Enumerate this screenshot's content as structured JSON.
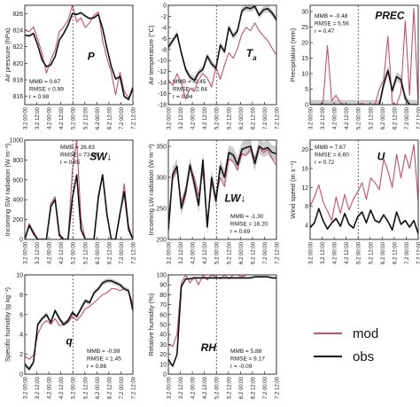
{
  "legend": {
    "mod_label": "mod",
    "obs_label": "obs",
    "mod_color": "#c0506e",
    "obs_color": "#111111"
  },
  "colors": {
    "mod": "#c0506e",
    "obs": "#111111",
    "band": "#aaaaaa",
    "axis": "#222222"
  },
  "x_tick_labels": [
    "3.2 00:00",
    "3.2 12:00",
    "4.2 00:00",
    "4.2 12:00",
    "5.2 00:00",
    "5.2 12:00",
    "6.2 00:00",
    "6.2 12:00",
    "7.2 00:00",
    "7.2 12:00"
  ],
  "chart_data": [
    {
      "type": "line",
      "id": "P",
      "title_main": "P",
      "title_sub": "",
      "ylabel": "Air pressure (hPa)",
      "ylim": [
        815,
        827
      ],
      "yticks": [
        816,
        818,
        820,
        822,
        824,
        826
      ],
      "stats": [
        "MMB = 0.67",
        "RMSE = 0.99",
        "r = 0.98"
      ],
      "series": [
        {
          "name": "obs",
          "values": [
            823.4,
            823.3,
            823.6,
            822.2,
            820.4,
            819.6,
            819.8,
            820.8,
            822.8,
            823.6,
            824.6,
            826.0,
            825.9,
            826.1,
            825.7,
            825.4,
            825.5,
            825.9,
            824.2,
            821.8,
            819.6,
            818.1,
            818.4,
            816.0,
            815.6,
            817.0
          ]
        },
        {
          "name": "mod",
          "values": [
            824.0,
            823.8,
            824.4,
            822.9,
            821.2,
            818.8,
            820.4,
            821.6,
            823.8,
            824.4,
            825.2,
            827.0,
            825.0,
            825.5,
            824.3,
            824.9,
            825.8,
            826.2,
            822.8,
            820.6,
            818.9,
            816.2,
            818.9,
            816.6,
            815.8,
            817.2
          ]
        }
      ],
      "band": {
        "series": "obs",
        "half_width": 0.12
      }
    },
    {
      "type": "line",
      "id": "Ta",
      "title_main": "T",
      "title_sub": "a",
      "ylabel": "Air temperature (°C)",
      "ylim": [
        -18,
        0
      ],
      "yticks": [
        -18,
        -16,
        -14,
        -12,
        -10,
        -8,
        -6,
        -4,
        -2,
        0
      ],
      "stats": [
        "MMB = -2.45",
        "RMSE = 2.64",
        "r = 0.94"
      ],
      "series": [
        {
          "name": "obs",
          "values": [
            -7.6,
            -6.4,
            -5.2,
            -8.6,
            -11.6,
            -13.0,
            -13.6,
            -12.2,
            -11.6,
            -9.2,
            -10.6,
            -11.4,
            -7.2,
            -8.4,
            -4.0,
            -5.6,
            -4.6,
            -1.0,
            -0.4,
            -0.6,
            -0.2,
            -1.8,
            -0.8,
            -0.6,
            -1.4,
            -2.6
          ]
        },
        {
          "name": "mod",
          "values": [
            -13.5,
            -14.5,
            -12.4,
            -14.0,
            -17.0,
            -15.0,
            -15.6,
            -13.4,
            -12.4,
            -13.2,
            -14.8,
            -11.2,
            -13.4,
            -10.8,
            -8.6,
            -9.6,
            -7.8,
            -5.2,
            -4.0,
            -4.6,
            -3.2,
            -4.6,
            -5.6,
            -6.4,
            -7.8,
            -9.0
          ]
        }
      ],
      "band": {
        "series": "obs",
        "half_width": 0.6
      }
    },
    {
      "type": "line",
      "id": "PREC",
      "title_main": "PREC",
      "title_sub": "",
      "ylabel": "Precipitation (mm)",
      "ylim": [
        0,
        32
      ],
      "yticks": [
        0,
        5,
        10,
        15,
        20,
        25,
        30
      ],
      "stats": [
        "MMB = -0.48",
        "RMSE = 5.56",
        "r = 0.47"
      ],
      "series": [
        {
          "name": "obs",
          "values": [
            0,
            0,
            0,
            0,
            0,
            0,
            0,
            0,
            0,
            0,
            0,
            0,
            0,
            0,
            0,
            0,
            0,
            6.5,
            11.0,
            4.5,
            9.0,
            8.0,
            2.0,
            0,
            0,
            0
          ]
        },
        {
          "name": "mod",
          "values": [
            0,
            0,
            0,
            0.6,
            19.0,
            1.2,
            3.0,
            0.5,
            0,
            0,
            0,
            0,
            0.4,
            0,
            0,
            0,
            5.0,
            8.0,
            22.0,
            0.5,
            0,
            4.0,
            27.0,
            3.0,
            31.0,
            0
          ]
        }
      ],
      "band": {
        "series": "obs",
        "half_width": 1.5
      }
    },
    {
      "type": "line",
      "id": "SW",
      "title_main": "SW↓",
      "title_sub": "",
      "ylabel": "Incoming SW radiation (W m⁻²)",
      "ylim": [
        0,
        1000
      ],
      "yticks": [
        0,
        200,
        400,
        600,
        800,
        1000
      ],
      "stats": [
        "MMB = 26.83",
        "RMSE = 73.94",
        "r = 0.85"
      ],
      "series": [
        {
          "name": "obs",
          "values": [
            0,
            140,
            60,
            0,
            0,
            0,
            330,
            400,
            40,
            0,
            0,
            420,
            650,
            100,
            0,
            0,
            0,
            430,
            650,
            250,
            0,
            0,
            260,
            480,
            100,
            0
          ]
        },
        {
          "name": "mod",
          "values": [
            0,
            160,
            80,
            0,
            0,
            0,
            360,
            430,
            60,
            0,
            0,
            700,
            1000,
            200,
            0,
            0,
            0,
            400,
            640,
            270,
            0,
            0,
            240,
            560,
            140,
            0
          ]
        }
      ],
      "band": {
        "series": "obs",
        "half_width": 14
      }
    },
    {
      "type": "line",
      "id": "LW",
      "title_main": "LW↓",
      "title_sub": "",
      "ylabel": "Incoming LW radiation (W m⁻²)",
      "ylim": [
        200,
        360
      ],
      "yticks": [
        200,
        250,
        300,
        350
      ],
      "stats": [
        "MMB = -1.30",
        "RMSE = 16.20",
        "r = 0.69"
      ],
      "series": [
        {
          "name": "obs",
          "values": [
            215,
            305,
            318,
            250,
            275,
            320,
            290,
            255,
            328,
            220,
            300,
            262,
            318,
            300,
            340,
            336,
            320,
            345,
            348,
            350,
            322,
            350,
            345,
            348,
            340,
            338
          ]
        },
        {
          "name": "mod",
          "values": [
            230,
            300,
            312,
            260,
            280,
            315,
            300,
            270,
            310,
            228,
            290,
            270,
            300,
            285,
            330,
            325,
            312,
            338,
            335,
            346,
            330,
            348,
            340,
            345,
            330,
            320
          ]
        }
      ],
      "band": {
        "series": "obs",
        "half_width": 12
      }
    },
    {
      "type": "line",
      "id": "U",
      "title_main": "U",
      "title_sub": "",
      "ylabel": "Wind speed (m s⁻¹)",
      "ylim": [
        1,
        22
      ],
      "yticks": [
        4,
        8,
        12,
        16,
        20
      ],
      "stats": [
        "MMB = 7.67",
        "RMSE = 8.60",
        "r = 0.72"
      ],
      "series": [
        {
          "name": "obs",
          "values": [
            3.5,
            4.5,
            7.5,
            5.0,
            3.2,
            4.5,
            5.4,
            3.8,
            6.5,
            4.2,
            3.4,
            5.8,
            6.8,
            4.5,
            7.2,
            5.0,
            4.6,
            6.2,
            4.8,
            3.0,
            6.8,
            4.2,
            5.0,
            3.6,
            5.0,
            2.2
          ]
        },
        {
          "name": "mod",
          "values": [
            8.0,
            10.0,
            12.5,
            9.0,
            7.0,
            5.0,
            10.0,
            6.5,
            10.5,
            7.2,
            9.5,
            11.0,
            13.0,
            9.5,
            14.0,
            13.0,
            11.5,
            18.0,
            15.5,
            12.0,
            19.0,
            14.0,
            19.0,
            16.0,
            21.0,
            9.0
          ]
        }
      ],
      "band": {
        "series": "obs",
        "half_width": 0.3
      }
    },
    {
      "type": "line",
      "id": "q",
      "title_main": "q",
      "title_sub": "",
      "ylabel": "Specific humidity (g kg⁻¹)",
      "ylim": [
        0,
        10
      ],
      "yticks": [
        0,
        2,
        4,
        6,
        8,
        10
      ],
      "stats": [
        "MMB = -0.99",
        "RMSE = 1.45",
        "r = 0.86"
      ],
      "series": [
        {
          "name": "obs",
          "values": [
            1.0,
            0.5,
            1.2,
            5.0,
            5.6,
            6.0,
            5.2,
            6.4,
            5.6,
            5.0,
            5.4,
            6.2,
            5.8,
            6.6,
            7.4,
            7.2,
            8.2,
            8.6,
            9.2,
            9.4,
            9.4,
            9.2,
            9.0,
            8.6,
            8.4,
            6.4
          ]
        },
        {
          "name": "mod",
          "values": [
            1.8,
            1.5,
            1.9,
            4.0,
            5.0,
            5.4,
            5.0,
            5.6,
            4.9,
            5.0,
            5.2,
            5.8,
            5.4,
            5.9,
            6.6,
            6.8,
            7.2,
            7.6,
            8.0,
            8.2,
            8.6,
            8.6,
            8.4,
            8.6,
            8.4,
            7.0
          ]
        }
      ],
      "band": {
        "series": "obs",
        "half_width": 0.25
      }
    },
    {
      "type": "line",
      "id": "RH",
      "title_main": "RH",
      "title_sub": "",
      "ylabel": "Relative humidity (%)",
      "ylim": [
        0,
        100
      ],
      "yticks": [
        0,
        10,
        20,
        30,
        40,
        50,
        60,
        70,
        80,
        90,
        100
      ],
      "stats": [
        "MMB = 5.88",
        "RMSE = 9.17",
        "r = -0.09"
      ],
      "series": [
        {
          "name": "obs",
          "values": [
            15,
            8,
            20,
            88,
            96,
            96,
            97,
            97,
            97,
            97,
            97,
            97,
            97,
            97,
            97,
            97,
            97,
            97,
            97,
            97,
            98,
            98,
            98,
            98,
            97,
            97
          ]
        },
        {
          "name": "mod",
          "values": [
            30,
            28,
            40,
            92,
            100,
            92,
            98,
            90,
            100,
            95,
            100,
            98,
            96,
            100,
            96,
            100,
            100,
            98,
            100,
            100,
            100,
            100,
            100,
            100,
            100,
            100
          ]
        }
      ],
      "band": {
        "series": "obs",
        "half_width": 1.0
      }
    }
  ]
}
